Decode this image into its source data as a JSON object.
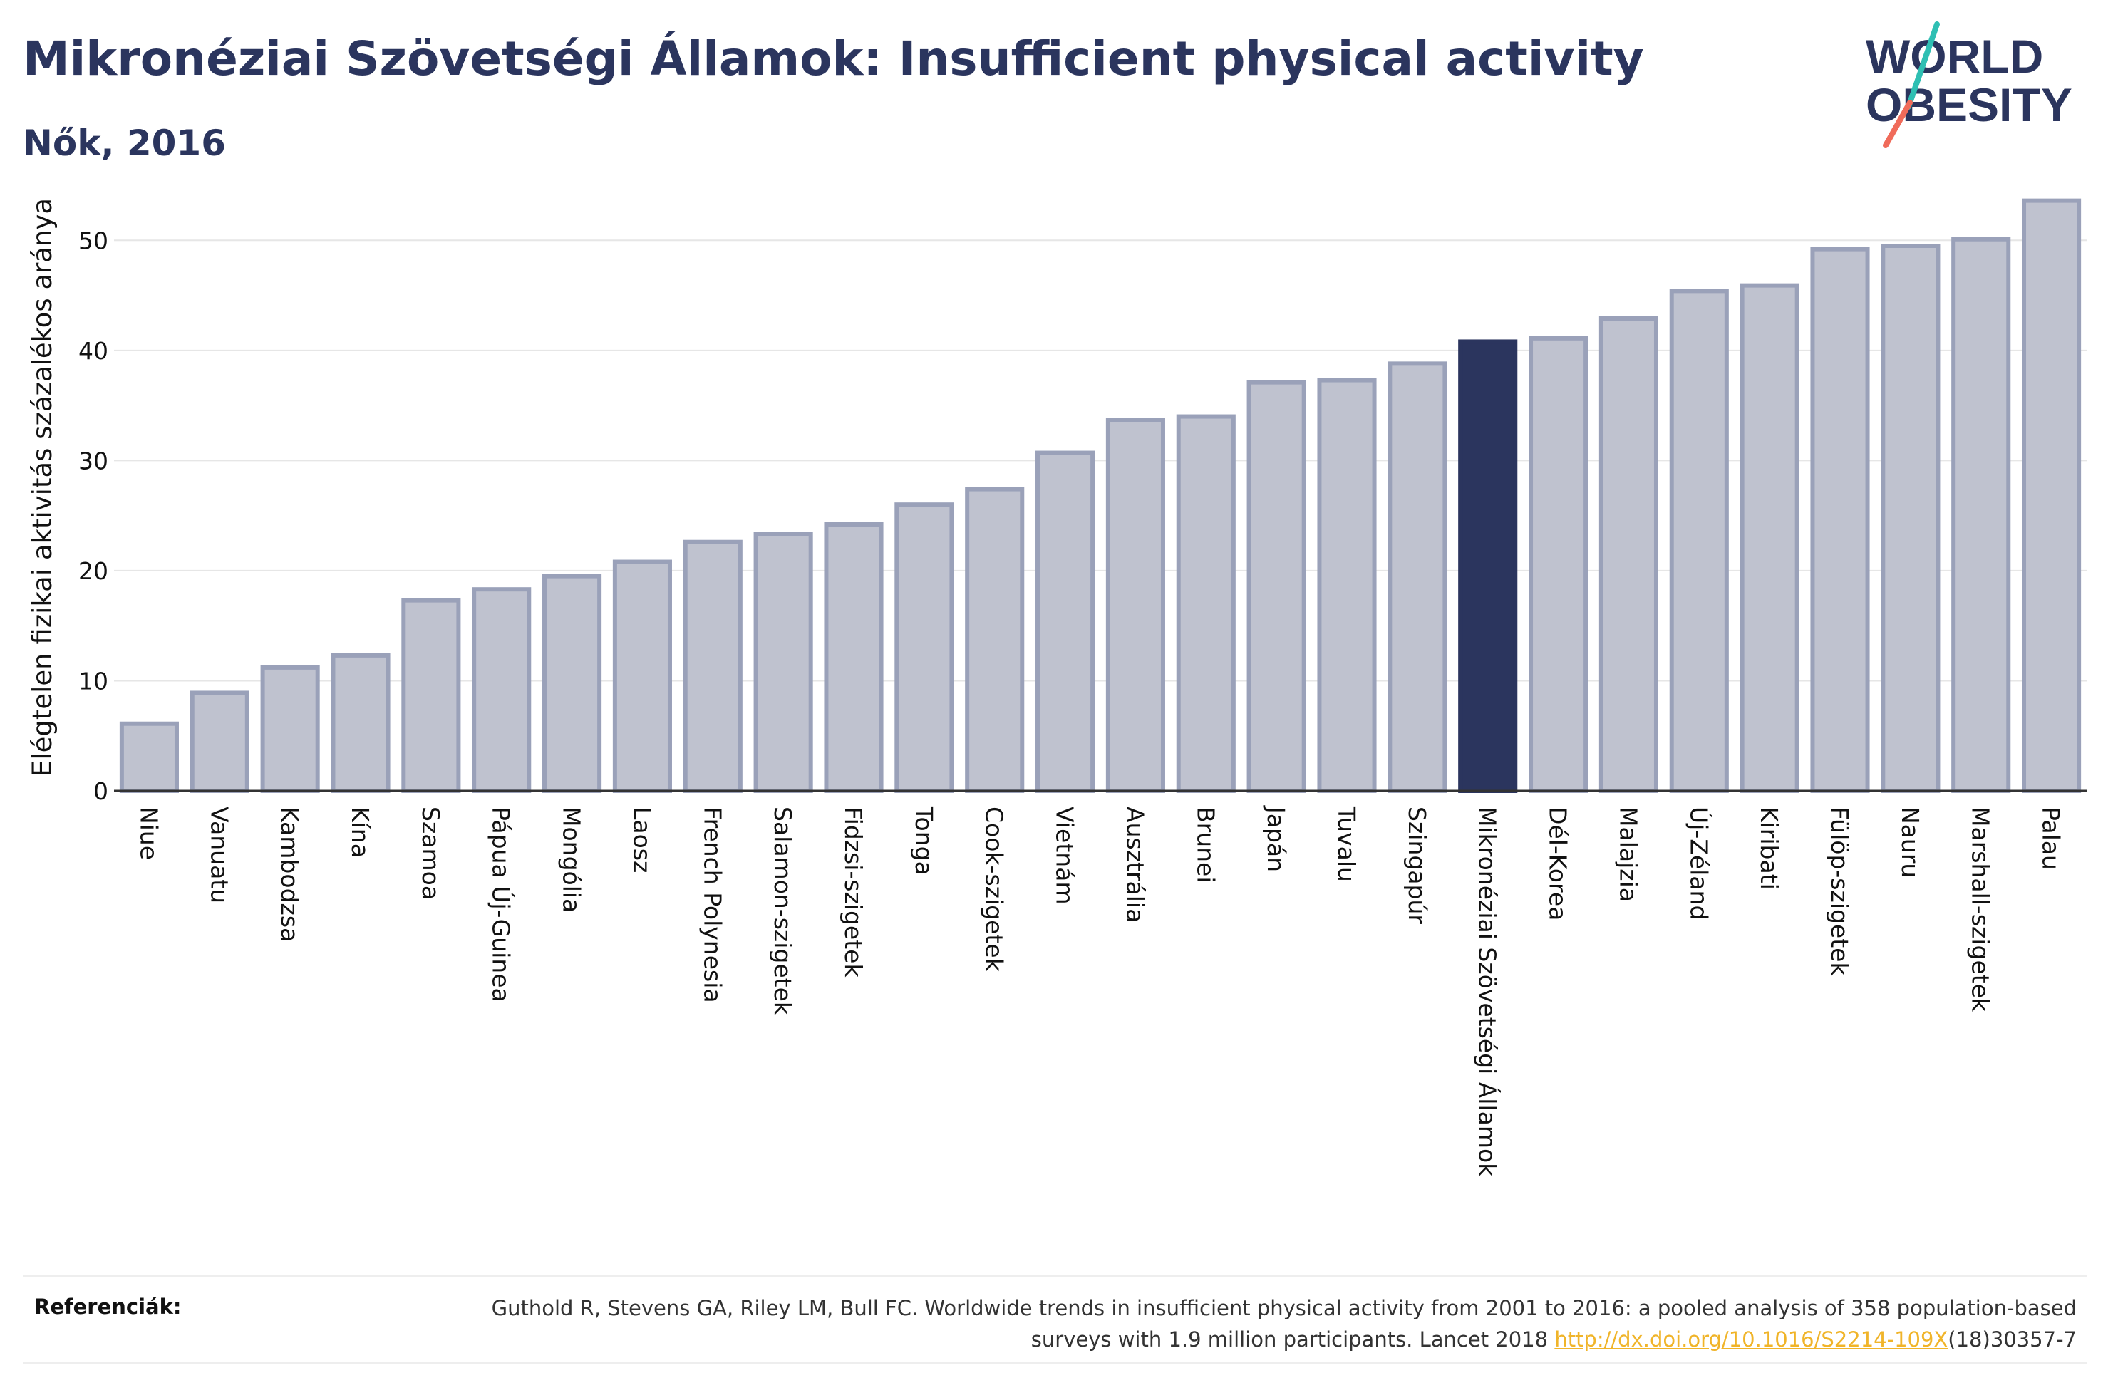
{
  "title": "Mikronéziai Szövetségi Államok: Insufficient physical activity",
  "subtitle": "Nők, 2016",
  "logo": {
    "line1": "WORLD",
    "line2": "OBESITY"
  },
  "chart_data": {
    "type": "bar",
    "ylabel": "Elégtelen fizikai aktivitás százalékos aránya",
    "xlabel": "",
    "ylim": [
      0,
      55
    ],
    "yticks": [
      0,
      10,
      20,
      30,
      40,
      50
    ],
    "grid": true,
    "highlight": "Mikronéziai Szövetségi Államok",
    "colors": {
      "bar": "#bfc2cf",
      "bar_border": "#9aa1b9",
      "highlight": "#2b355e",
      "axis": "#333333",
      "grid": "#e6e6e6"
    },
    "categories": [
      "Niue",
      "Vanuatu",
      "Kambodzsa",
      "Kína",
      "Szamoa",
      "Pápua Új-Guinea",
      "Mongólia",
      "Laosz",
      "French Polynesia",
      "Salamon-szigetek",
      "Fidzsi-szigetek",
      "Tonga",
      "Cook-szigetek",
      "Vietnám",
      "Ausztrália",
      "Brunei",
      "Japán",
      "Tuvalu",
      "Szingapúr",
      "Mikronéziai Szövetségi Államok",
      "Dél-Korea",
      "Malajzia",
      "Új-Zéland",
      "Kiribati",
      "Fülöp-szigetek",
      "Nauru",
      "Marshall-szigetek",
      "Palau"
    ],
    "values": [
      6.1,
      8.9,
      11.2,
      12.3,
      17.3,
      18.3,
      19.5,
      20.8,
      22.6,
      23.3,
      24.2,
      26.0,
      27.4,
      30.7,
      33.7,
      34.0,
      37.1,
      37.3,
      38.8,
      40.8,
      41.1,
      42.9,
      45.4,
      45.9,
      49.2,
      49.5,
      50.1,
      53.6
    ]
  },
  "references": {
    "label": "Referenciák:",
    "text_before": "Guthold R, Stevens GA, Riley LM, Bull FC. Worldwide trends in insufficient physical activity from 2001 to 2016: a pooled analysis of 358 population-based surveys with 1.9 million participants. Lancet 2018 ",
    "link": "http://dx.doi.org/10.1016/S2214-109X",
    "text_after": "(18)30357-7"
  }
}
